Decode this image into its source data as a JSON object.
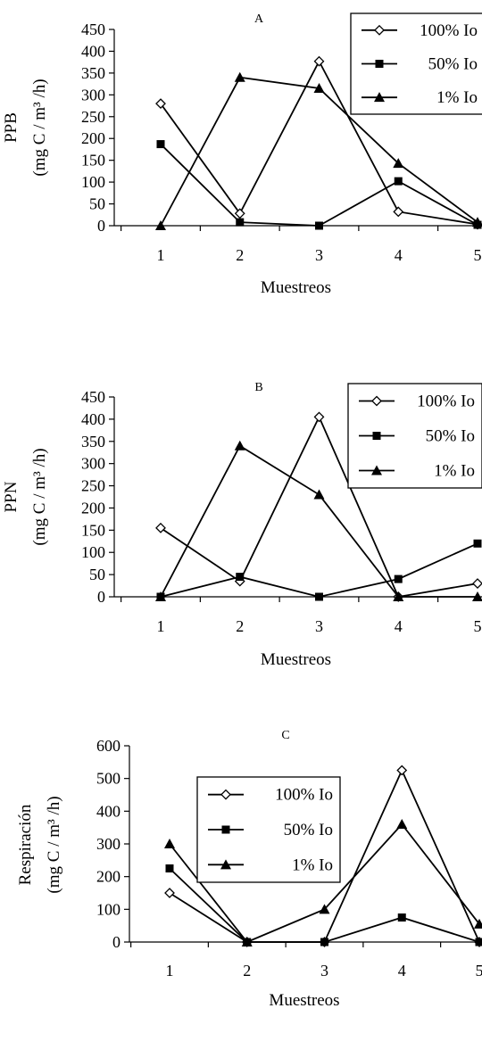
{
  "chart_data": [
    {
      "type": "line",
      "title": "A",
      "xlabel": "Muestreos",
      "ylabel": "PPB",
      "ylabel_units": "(mg C / m³ /h)",
      "categories": [
        "1",
        "2",
        "3",
        "4",
        "5"
      ],
      "ylim": [
        0,
        450
      ],
      "yticks": [
        "0",
        "50",
        "100",
        "150",
        "200",
        "250",
        "300",
        "350",
        "400",
        "450"
      ],
      "legend_position": "top-right",
      "series": [
        {
          "name": "100% Io",
          "marker": "open-diamond",
          "values": [
            280,
            28,
            377,
            32,
            3
          ]
        },
        {
          "name": "50% Io",
          "marker": "filled-square",
          "values": [
            187,
            8,
            0,
            102,
            2
          ]
        },
        {
          "name": "1% Io",
          "marker": "filled-triangle",
          "values": [
            0,
            340,
            315,
            143,
            8
          ]
        }
      ]
    },
    {
      "type": "line",
      "title": "B",
      "xlabel": "Muestreos",
      "ylabel": "PPN",
      "ylabel_units": "(mg C / m³ /h)",
      "categories": [
        "1",
        "2",
        "3",
        "4",
        "5"
      ],
      "ylim": [
        0,
        450
      ],
      "yticks": [
        "0",
        "50",
        "100",
        "150",
        "200",
        "250",
        "300",
        "350",
        "400",
        "450"
      ],
      "legend_position": "top-right",
      "series": [
        {
          "name": "100% Io",
          "marker": "open-diamond",
          "values": [
            155,
            35,
            405,
            0,
            30
          ]
        },
        {
          "name": "50% Io",
          "marker": "filled-square",
          "values": [
            0,
            45,
            0,
            40,
            120
          ]
        },
        {
          "name": "1% Io",
          "marker": "filled-triangle",
          "values": [
            0,
            340,
            230,
            0,
            0
          ]
        }
      ]
    },
    {
      "type": "line",
      "title": "C",
      "xlabel": "Muestreos",
      "ylabel": "Respiración",
      "ylabel_units": "(mg C / m³ /h)",
      "categories": [
        "1",
        "2",
        "3",
        "4",
        "5"
      ],
      "ylim": [
        0,
        600
      ],
      "yticks": [
        "0",
        "100",
        "200",
        "300",
        "400",
        "500",
        "600"
      ],
      "legend_position": "top-left",
      "series": [
        {
          "name": "100% Io",
          "marker": "open-diamond",
          "values": [
            150,
            0,
            0,
            525,
            0
          ]
        },
        {
          "name": "50% Io",
          "marker": "filled-square",
          "values": [
            225,
            0,
            0,
            75,
            0
          ]
        },
        {
          "name": "1% Io",
          "marker": "filled-triangle",
          "values": [
            300,
            0,
            100,
            360,
            55
          ]
        }
      ]
    }
  ]
}
